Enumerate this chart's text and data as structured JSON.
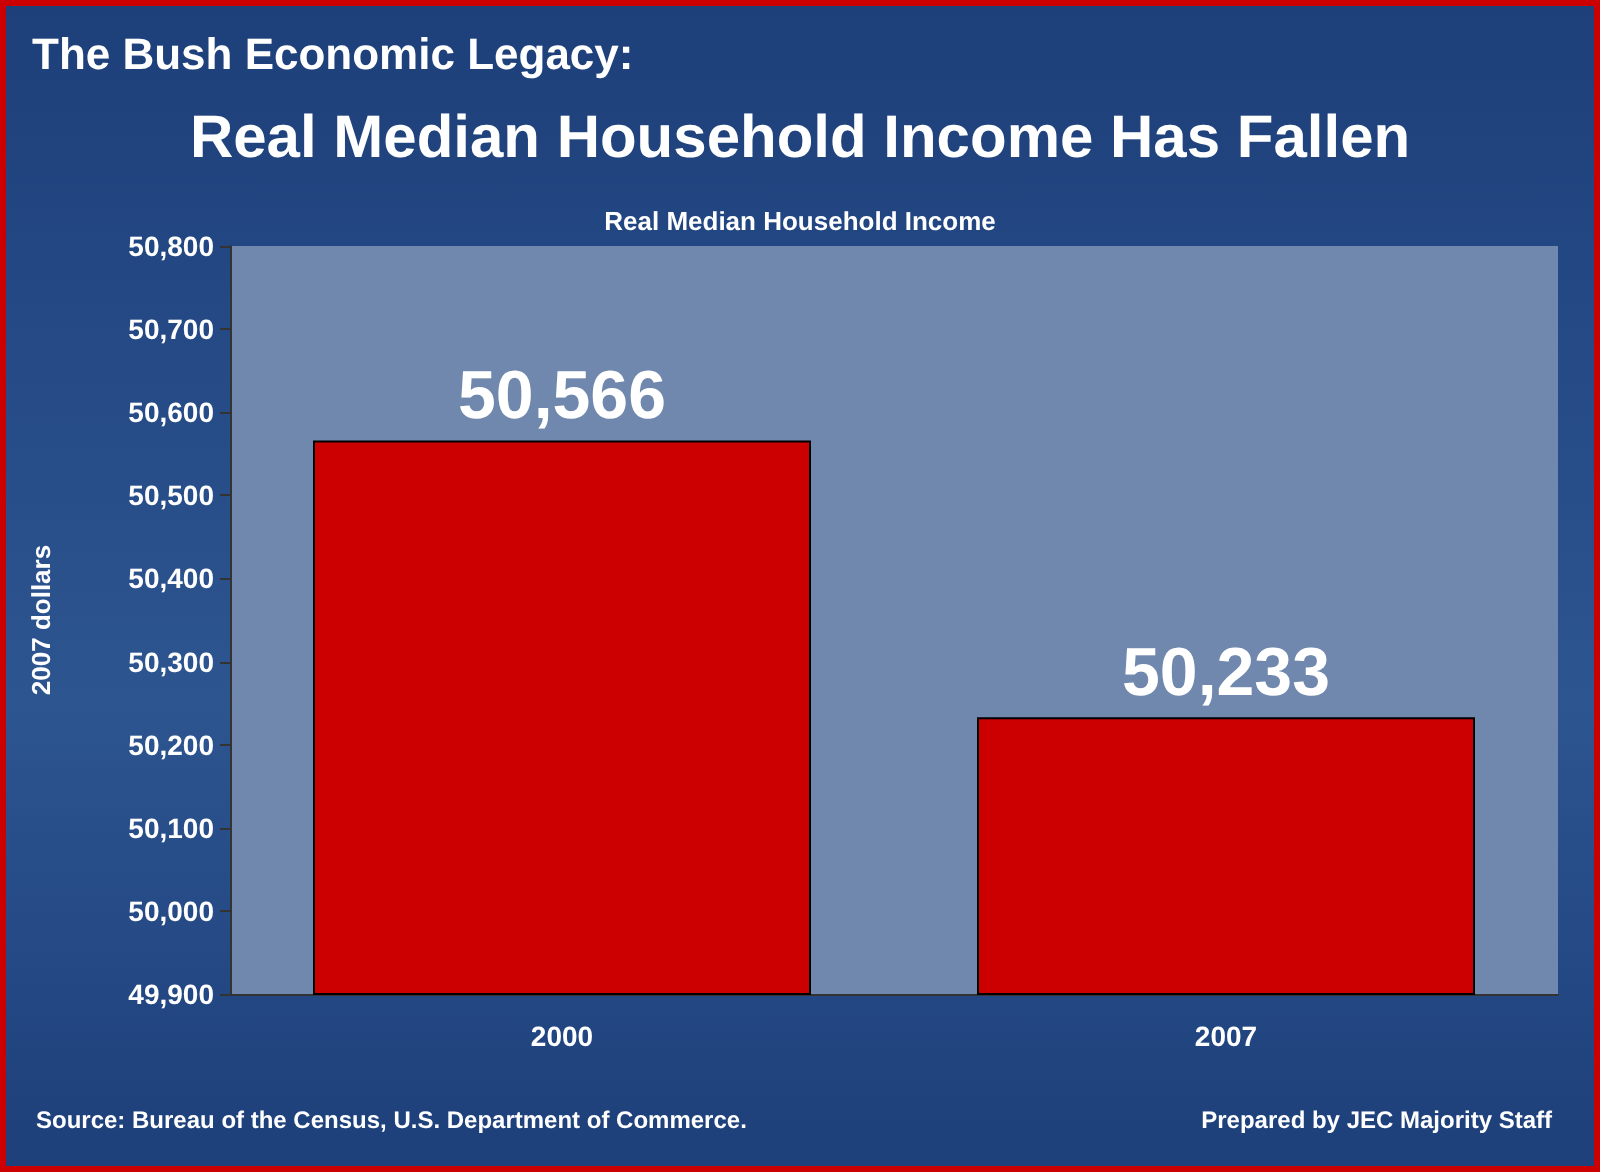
{
  "chart_data": {
    "type": "bar",
    "title": "The Bush Economic Legacy:",
    "subtitle": "Real Median Household Income Has Fallen",
    "ylabel": "2007 dollars",
    "categories": [
      "2000",
      "2007"
    ],
    "values": [
      50566,
      50233
    ],
    "color": "#cc0000",
    "value_labels": [
      "50,566",
      "50,233"
    ],
    "ylim": [
      49900,
      50800
    ],
    "yticks": [
      {
        "value": 49900,
        "label": "49,900"
      },
      {
        "value": 50000,
        "label": "50,000"
      },
      {
        "value": 50100,
        "label": "50,100"
      },
      {
        "value": 50200,
        "label": "50,200"
      },
      {
        "value": 50300,
        "label": "50,300"
      },
      {
        "value": 50400,
        "label": "50,400"
      },
      {
        "value": 50500,
        "label": "50,500"
      },
      {
        "value": 50600,
        "label": "50,600"
      },
      {
        "value": 50700,
        "label": "50,700"
      },
      {
        "value": 50800,
        "label": "50,800"
      }
    ],
    "grid": false,
    "annotations": [
      "Real Median Household Income",
      "Source: Bureau of the Census, U.S. Department of Commerce.",
      "Prepared by JEC Majority Staff"
    ]
  }
}
